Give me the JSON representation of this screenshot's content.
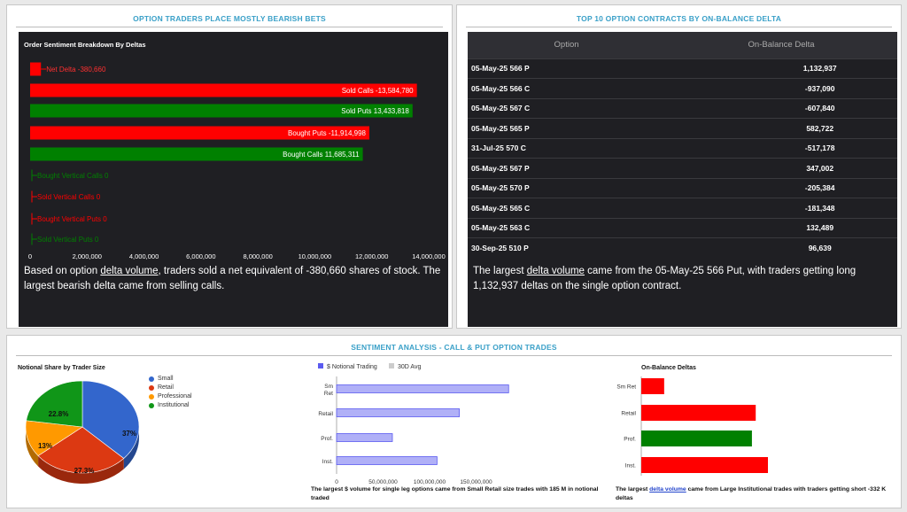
{
  "panel_left": {
    "title": "OPTION TRADERS PLACE MOSTLY BEARISH BETS",
    "chart_data": {
      "type": "bar",
      "title": "Order Sentiment Breakdown By Deltas",
      "categories": [
        "Net Delta",
        "Sold Calls",
        "Sold Puts",
        "Bought Puts",
        "Bought Calls",
        "Bought Vertical Calls",
        "Sold Vertical Calls",
        "Bought Vertical Puts",
        "Sold Vertical Puts"
      ],
      "labels": [
        "Net Delta -380,660",
        "Sold Calls -13,584,780",
        "Sold Puts 13,433,818",
        "Bought Puts -11,914,998",
        "Bought Calls 11,685,311",
        "Bought Vertical Calls 0",
        "Sold Vertical Calls 0",
        "Bought Vertical Puts 0",
        "Sold Vertical Puts 0"
      ],
      "values": [
        380660,
        13584780,
        13433818,
        11914998,
        11685311,
        0,
        0,
        0,
        0
      ],
      "colors": [
        "#ff0000",
        "#ff0000",
        "#008000",
        "#ff0000",
        "#008000",
        "#008000",
        "#ff0000",
        "#ff0000",
        "#008000"
      ],
      "xticks": [
        "0",
        "2,000,000",
        "4,000,000",
        "6,000,000",
        "8,000,000",
        "10,000,000",
        "12,000,000",
        "14,000,000"
      ],
      "xlim": [
        0,
        14000000
      ]
    },
    "summary_pre": "Based on option ",
    "summary_link": "delta volume",
    "summary_post": ", traders sold a net equivalent of -380,660 shares of stock. The largest bearish delta came from selling calls."
  },
  "panel_right": {
    "title": "TOP 10 OPTION CONTRACTS BY ON-BALANCE DELTA",
    "table": {
      "headers": [
        "Option",
        "On-Balance Delta"
      ],
      "rows": [
        [
          "05-May-25 566 P",
          "1,132,937"
        ],
        [
          "05-May-25 566 C",
          "-937,090"
        ],
        [
          "05-May-25 567 C",
          "-607,840"
        ],
        [
          "05-May-25 565 P",
          "582,722"
        ],
        [
          "31-Jul-25 570 C",
          "-517,178"
        ],
        [
          "05-May-25 567 P",
          "347,002"
        ],
        [
          "05-May-25 570 P",
          "-205,384"
        ],
        [
          "05-May-25 565 C",
          "-181,348"
        ],
        [
          "05-May-25 563 C",
          "132,489"
        ],
        [
          "30-Sep-25 510 P",
          "96,639"
        ]
      ]
    },
    "summary_pre": "The largest ",
    "summary_link": "delta volume",
    "summary_post": " came from the 05-May-25 566 Put, with traders getting long 1,132,937 deltas on the single option contract."
  },
  "panel_bottom": {
    "title": "SENTIMENT ANALYSIS - CALL & PUT OPTION TRADES",
    "pie": {
      "chart_data": {
        "type": "pie",
        "title": "Notional Share by Trader Size",
        "categories": [
          "Small",
          "Retail",
          "Professional",
          "Institutional"
        ],
        "values": [
          37,
          27.3,
          13,
          22.8
        ],
        "labels": [
          "37%",
          "27.3%",
          "13%",
          "22.8%"
        ],
        "colors": [
          "#3366cc",
          "#dc3912",
          "#ff9900",
          "#109618"
        ],
        "legend": "right"
      }
    },
    "notional": {
      "chart_data": {
        "type": "bar",
        "legend_items": [
          "$ Notional Trading",
          "30D Avg"
        ],
        "legend_colors": [
          "#5b5bf0",
          "#cccccc"
        ],
        "categories": [
          "Sm Ret",
          "Retail",
          "Prof.",
          "Inst."
        ],
        "category_lines": [
          [
            "Sm",
            "Ret"
          ],
          [
            "Retail"
          ],
          [
            "Prof."
          ],
          [
            "Inst."
          ]
        ],
        "values": [
          185000000,
          132000000,
          60000000,
          108000000
        ],
        "xticks": [
          "0",
          "50,000,000",
          "100,000,000",
          "150,000,000"
        ],
        "xlim": [
          0,
          200000000
        ]
      },
      "caption": "The largest $ volume for single leg options came from Small Retail size trades with 185 M in notional traded"
    },
    "obd": {
      "chart_data": {
        "type": "bar",
        "title": "On-Balance Deltas",
        "categories": [
          "Sm Ret",
          "Retail",
          "Prof.",
          "Inst."
        ],
        "values": [
          -60000,
          -300000,
          290000,
          -332000
        ],
        "colors": [
          "#ff0000",
          "#ff0000",
          "#008000",
          "#ff0000"
        ]
      },
      "caption_pre": "The largest ",
      "caption_link": "delta volume",
      "caption_post": " came from Large Institutional trades with traders getting short -332 K deltas"
    }
  }
}
